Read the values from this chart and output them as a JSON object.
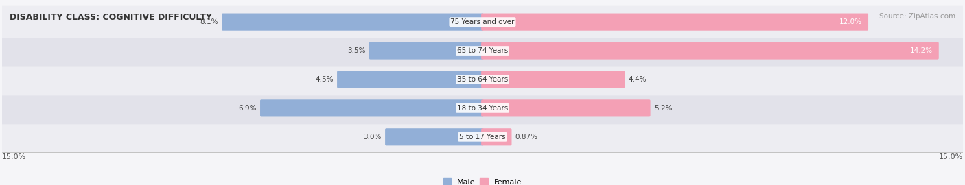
{
  "title": "DISABILITY CLASS: COGNITIVE DIFFICULTY",
  "source": "Source: ZipAtlas.com",
  "categories": [
    "5 to 17 Years",
    "18 to 34 Years",
    "35 to 64 Years",
    "65 to 74 Years",
    "75 Years and over"
  ],
  "male_values": [
    3.0,
    6.9,
    4.5,
    3.5,
    8.1
  ],
  "female_values": [
    0.87,
    5.2,
    4.4,
    14.2,
    12.0
  ],
  "x_max": 15.0,
  "male_color": "#92afd7",
  "female_color": "#f4a0b5",
  "row_bg_odd": "#ededf2",
  "row_bg_even": "#e2e2ea",
  "label_fontsize": 7.5,
  "title_fontsize": 9,
  "source_fontsize": 7.5,
  "axis_label_fontsize": 8,
  "male_label": "Male",
  "female_label": "Female"
}
